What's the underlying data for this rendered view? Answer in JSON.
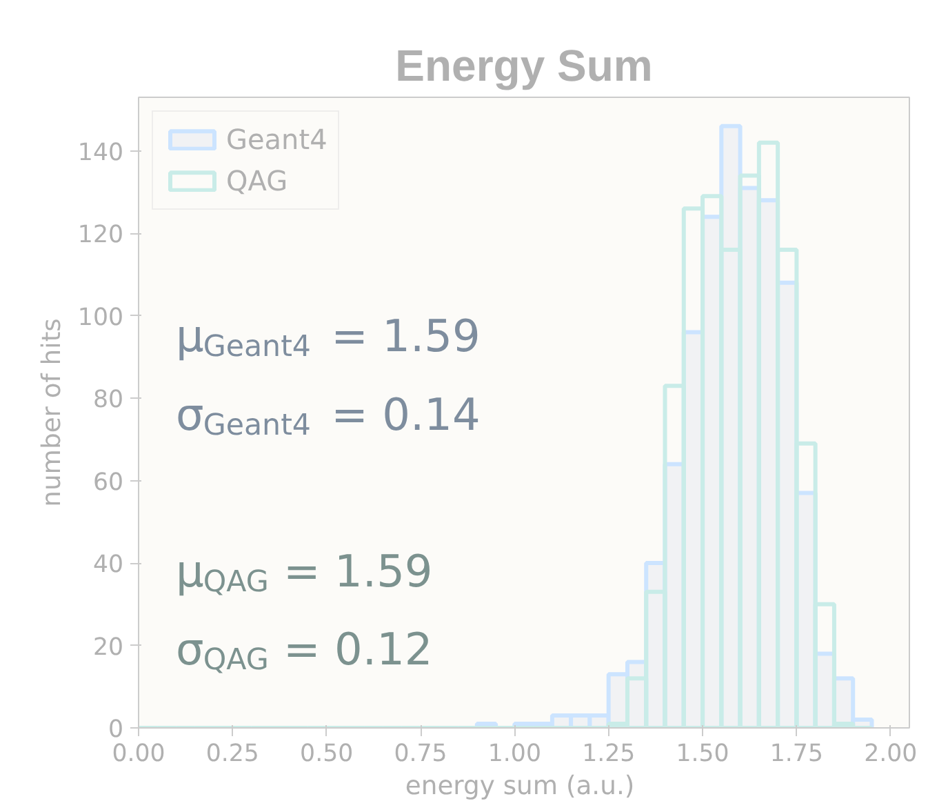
{
  "chart_data": {
    "type": "histogram",
    "title": "Energy Sum",
    "xlabel": "energy sum  (a.u.)",
    "ylabel": "number of hits",
    "bins": [
      0.0,
      0.05,
      0.1,
      0.15,
      0.2,
      0.25,
      0.3,
      0.35,
      0.4,
      0.45,
      0.5,
      0.55,
      0.6,
      0.65,
      0.7,
      0.75,
      0.8,
      0.85,
      0.9,
      0.95,
      1.0,
      1.05,
      1.1,
      1.15,
      1.2,
      1.25,
      1.3,
      1.35,
      1.4,
      1.45,
      1.5,
      1.55,
      1.6,
      1.65,
      1.7,
      1.75,
      1.8,
      1.85,
      1.9,
      1.95
    ],
    "series": [
      {
        "name": "Geant4",
        "color": "#cce4ff",
        "values": [
          0,
          0,
          0,
          0,
          0,
          0,
          0,
          0,
          0,
          0,
          0,
          0,
          0,
          0,
          0,
          0,
          0,
          0,
          1,
          0,
          1,
          1,
          3,
          3,
          3,
          13,
          16,
          40,
          64,
          96,
          124,
          146,
          131,
          128,
          108,
          57,
          18,
          12,
          2
        ]
      },
      {
        "name": "QAG",
        "color": "#c9ece8",
        "values": [
          0,
          0,
          0,
          0,
          0,
          0,
          0,
          0,
          0,
          0,
          0,
          0,
          0,
          0,
          0,
          0,
          0,
          0,
          0,
          0,
          0,
          0,
          0,
          0,
          0,
          1,
          12,
          33,
          83,
          126,
          129,
          116,
          134,
          142,
          116,
          69,
          30,
          1,
          0
        ]
      }
    ],
    "xlim": [
      0,
      2.05
    ],
    "ylim": [
      0,
      153
    ],
    "xticks": [
      {
        "value": 0,
        "label": "0.00"
      },
      0.25,
      {
        "value": 0.5,
        "label": "0.50"
      },
      0.75,
      {
        "value": 1,
        "label": "1.00"
      },
      1.25,
      {
        "value": 1.5,
        "label": "1.50"
      },
      1.75,
      {
        "value": 2,
        "label": "2.00"
      }
    ],
    "yticks": [
      0,
      20,
      40,
      60,
      80,
      100,
      120,
      140
    ],
    "legend": "top left",
    "grid": false,
    "annotations": [
      "μ$_{Geant4}$ = 1.59",
      "σ$_{Geant4}$ = 0.14",
      "μ$_{QAG}$ = 1.59",
      "σ$_{QAG}$ = 0.12"
    ]
  }
}
